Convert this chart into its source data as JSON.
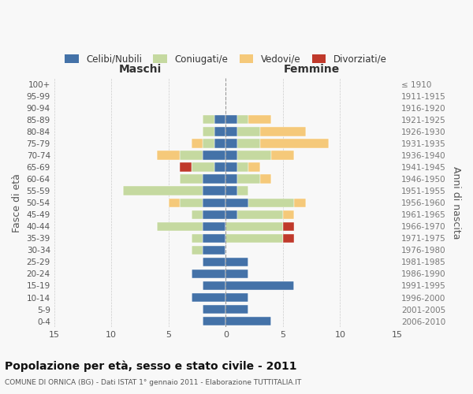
{
  "age_groups": [
    "100+",
    "95-99",
    "90-94",
    "85-89",
    "80-84",
    "75-79",
    "70-74",
    "65-69",
    "60-64",
    "55-59",
    "50-54",
    "45-49",
    "40-44",
    "35-39",
    "30-34",
    "25-29",
    "20-24",
    "15-19",
    "10-14",
    "5-9",
    "0-4"
  ],
  "birth_years": [
    "≤ 1910",
    "1911-1915",
    "1916-1920",
    "1921-1925",
    "1926-1930",
    "1931-1935",
    "1936-1940",
    "1941-1945",
    "1946-1950",
    "1951-1955",
    "1956-1960",
    "1961-1965",
    "1966-1970",
    "1971-1975",
    "1976-1980",
    "1981-1985",
    "1986-1990",
    "1991-1995",
    "1996-2000",
    "2001-2005",
    "2006-2010"
  ],
  "maschi": {
    "celibi": [
      0,
      0,
      0,
      1,
      1,
      1,
      2,
      1,
      2,
      2,
      2,
      2,
      2,
      2,
      2,
      2,
      3,
      2,
      3,
      2,
      2
    ],
    "coniugati": [
      0,
      0,
      0,
      1,
      1,
      1,
      2,
      2,
      2,
      7,
      2,
      1,
      4,
      1,
      1,
      0,
      0,
      0,
      0,
      0,
      0
    ],
    "vedovi": [
      0,
      0,
      0,
      0,
      0,
      1,
      2,
      0,
      0,
      0,
      1,
      0,
      0,
      0,
      0,
      0,
      0,
      0,
      0,
      0,
      0
    ],
    "divorziati": [
      0,
      0,
      0,
      0,
      0,
      0,
      0,
      1,
      0,
      0,
      0,
      0,
      0,
      0,
      0,
      0,
      0,
      0,
      0,
      0,
      0
    ]
  },
  "femmine": {
    "nubili": [
      0,
      0,
      0,
      1,
      1,
      1,
      1,
      1,
      1,
      1,
      2,
      1,
      0,
      0,
      0,
      2,
      2,
      6,
      2,
      2,
      4
    ],
    "coniugate": [
      0,
      0,
      0,
      1,
      2,
      2,
      3,
      1,
      2,
      1,
      4,
      4,
      5,
      5,
      0,
      0,
      0,
      0,
      0,
      0,
      0
    ],
    "vedove": [
      0,
      0,
      0,
      2,
      4,
      6,
      2,
      1,
      1,
      0,
      1,
      1,
      0,
      0,
      0,
      0,
      0,
      0,
      0,
      0,
      0
    ],
    "divorziate": [
      0,
      0,
      0,
      0,
      0,
      0,
      0,
      0,
      0,
      0,
      0,
      0,
      1,
      1,
      0,
      0,
      0,
      0,
      0,
      0,
      0
    ]
  },
  "colors": {
    "celibi": "#4472a8",
    "coniugati": "#c5d9a0",
    "vedovi": "#f5c97a",
    "divorziati": "#c0392b"
  },
  "xlim": 15,
  "title": "Popolazione per età, sesso e stato civile - 2011",
  "subtitle": "COMUNE DI ORNICA (BG) - Dati ISTAT 1° gennaio 2011 - Elaborazione TUTTITALIA.IT",
  "ylabel_left": "Fasce di età",
  "ylabel_right": "Anni di nascita",
  "xlabel_maschi": "Maschi",
  "xlabel_femmine": "Femmine",
  "bg_color": "#f8f8f8",
  "grid_color": "#cccccc"
}
